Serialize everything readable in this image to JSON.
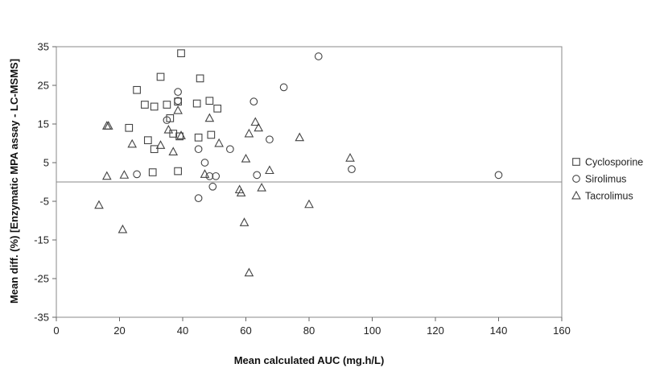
{
  "chart_data": {
    "type": "scatter",
    "xlabel": "Mean calculated AUC (mg.h/L)",
    "ylabel": "Mean diff. (%) [Enzymatic MPA assay - LC-MSMS]",
    "xlim": [
      0,
      160
    ],
    "ylim": [
      -35,
      35
    ],
    "xticks": [
      0,
      20,
      40,
      60,
      80,
      100,
      120,
      140,
      160
    ],
    "yticks": [
      -35,
      -25,
      -15,
      -5,
      5,
      15,
      25,
      35
    ],
    "zero_line": true,
    "grid": false,
    "legend_position": "right",
    "series": [
      {
        "name": "Cyclosporine",
        "marker": "square",
        "points": [
          [
            39.5,
            33.3
          ],
          [
            45.5,
            26.8
          ],
          [
            33,
            27.2
          ],
          [
            25.5,
            23.8
          ],
          [
            28,
            20
          ],
          [
            31,
            19.5
          ],
          [
            35,
            20
          ],
          [
            38.5,
            20.8
          ],
          [
            44.5,
            20.3
          ],
          [
            48.5,
            21
          ],
          [
            51,
            19
          ],
          [
            36,
            16.5
          ],
          [
            23,
            14
          ],
          [
            37,
            12.5
          ],
          [
            39,
            11.8
          ],
          [
            45,
            11.5
          ],
          [
            49,
            12.2
          ],
          [
            29,
            10.8
          ],
          [
            31,
            8.5
          ],
          [
            30.5,
            2.5
          ],
          [
            38.5,
            2.8
          ]
        ]
      },
      {
        "name": "Sirolimus",
        "marker": "circle",
        "points": [
          [
            83,
            32.5
          ],
          [
            72,
            24.5
          ],
          [
            38.5,
            23.3
          ],
          [
            62.5,
            20.8
          ],
          [
            38.5,
            21
          ],
          [
            35,
            16
          ],
          [
            45,
            8.5
          ],
          [
            55,
            8.5
          ],
          [
            67.5,
            11
          ],
          [
            47,
            5
          ],
          [
            25.5,
            2
          ],
          [
            48.5,
            1.5
          ],
          [
            50.5,
            1.5
          ],
          [
            63.5,
            1.8
          ],
          [
            93.5,
            3.3
          ],
          [
            140,
            1.8
          ],
          [
            49.5,
            -1.2
          ],
          [
            45,
            -4.2
          ]
        ]
      },
      {
        "name": "Tacrolimus",
        "marker": "triangle",
        "points": [
          [
            16,
            14.5
          ],
          [
            16.5,
            14.5
          ],
          [
            35.5,
            13.5
          ],
          [
            38.5,
            18.5
          ],
          [
            48.5,
            16.5
          ],
          [
            63,
            15.5
          ],
          [
            64,
            14
          ],
          [
            61,
            12.5
          ],
          [
            39.5,
            12
          ],
          [
            24,
            9.8
          ],
          [
            33,
            9.5
          ],
          [
            51.5,
            10
          ],
          [
            37,
            7.8
          ],
          [
            60,
            6
          ],
          [
            77,
            11.5
          ],
          [
            93,
            6.2
          ],
          [
            67.5,
            3
          ],
          [
            47,
            2
          ],
          [
            16,
            1.5
          ],
          [
            21.5,
            1.8
          ],
          [
            58,
            -2
          ],
          [
            58.5,
            -2.8
          ],
          [
            65,
            -1.5
          ],
          [
            13.5,
            -6
          ],
          [
            80,
            -5.8
          ],
          [
            59.5,
            -10.5
          ],
          [
            21,
            -12.3
          ],
          [
            61,
            -23.5
          ]
        ]
      }
    ]
  }
}
